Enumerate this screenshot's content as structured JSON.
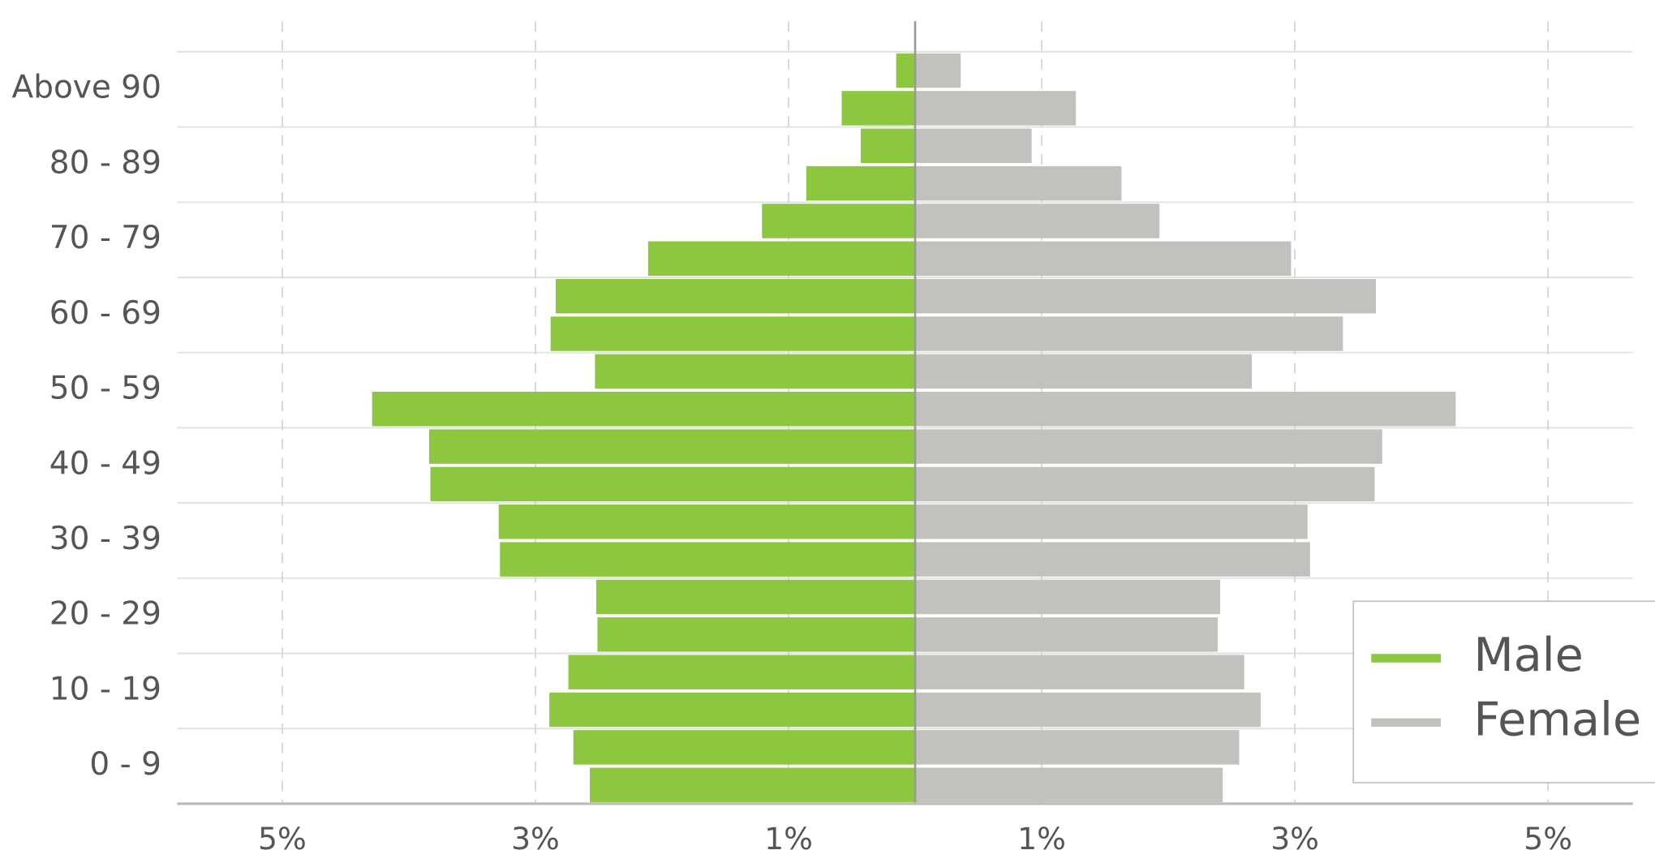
{
  "chart_data": {
    "type": "pyramid",
    "categories": [
      "0 - 9",
      null,
      "10 - 19",
      null,
      "20 - 29",
      null,
      "30 - 39",
      null,
      "40 - 49",
      null,
      "50 - 59",
      null,
      "60 - 69",
      null,
      "70 - 79",
      null,
      "80 - 89",
      null,
      "Above 90",
      null
    ],
    "series": [
      {
        "name": "Male",
        "color": "#8dc63f",
        "values": [
          -2.57,
          -2.7,
          -2.89,
          -2.74,
          -2.51,
          -2.52,
          -3.28,
          -3.29,
          -3.83,
          -3.84,
          -4.29,
          -2.53,
          -2.88,
          -2.84,
          -2.11,
          -1.21,
          -0.86,
          -0.43,
          -0.58,
          -0.15
        ]
      },
      {
        "name": "Female",
        "color": "#c3c1bd",
        "values": [
          2.43,
          2.56,
          2.73,
          2.6,
          2.39,
          2.41,
          3.12,
          3.1,
          3.63,
          3.69,
          4.27,
          2.66,
          3.38,
          3.64,
          2.97,
          1.93,
          1.63,
          0.92,
          1.27,
          0.36
        ]
      }
    ],
    "xlim": [
      -5.83,
      5.67
    ],
    "xticks": [
      {
        "value": -5,
        "label": "5%"
      },
      {
        "value": -3,
        "label": "3%"
      },
      {
        "value": -1,
        "label": "1%"
      },
      {
        "value": 1,
        "label": "1%"
      },
      {
        "value": 3,
        "label": "3%"
      },
      {
        "value": 5,
        "label": "5%"
      }
    ],
    "grid": true,
    "legend": "lower right"
  }
}
